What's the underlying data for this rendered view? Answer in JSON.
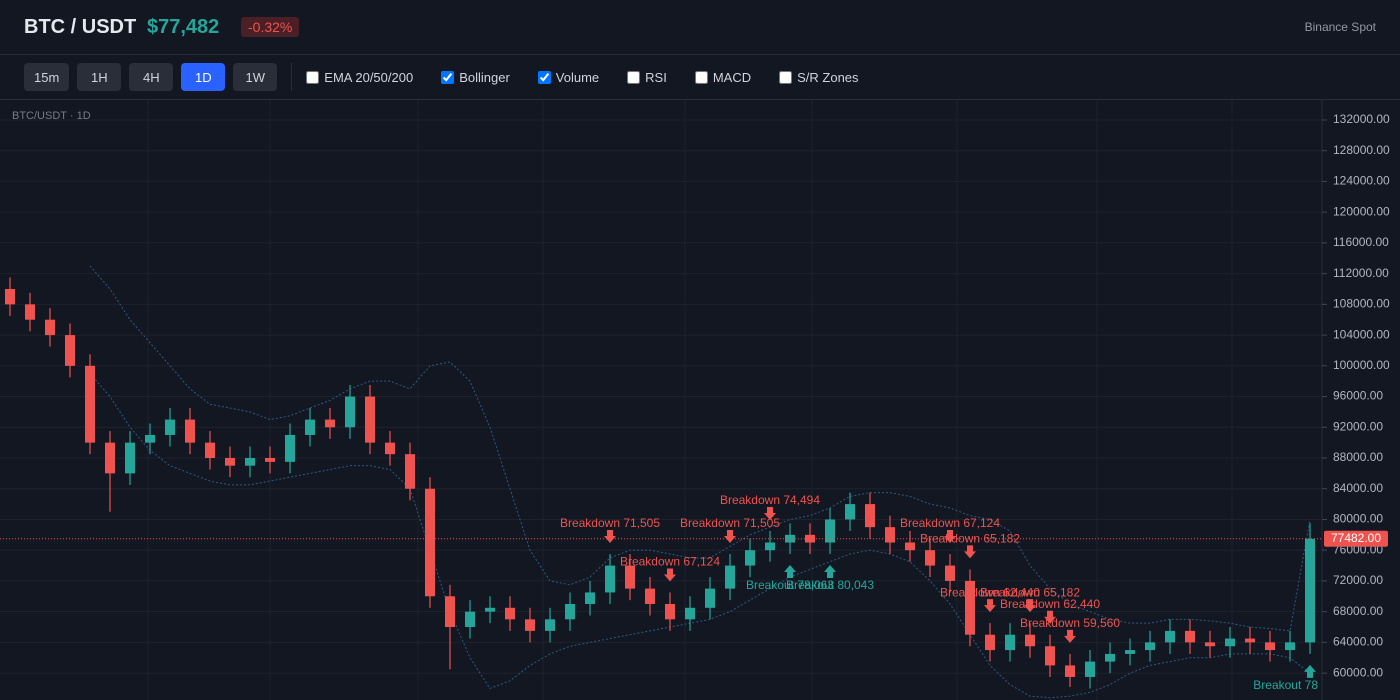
{
  "header": {
    "symbol": "BTC / USDT",
    "price": "$77,482",
    "change": "-0.32%",
    "exchange": "Binance Spot"
  },
  "toolbar": {
    "timeframes": [
      {
        "label": "15m",
        "active": false
      },
      {
        "label": "1H",
        "active": false
      },
      {
        "label": "4H",
        "active": false
      },
      {
        "label": "1D",
        "active": true
      },
      {
        "label": "1W",
        "active": false
      }
    ],
    "indicators": [
      {
        "label": "EMA 20/50/200",
        "checked": false
      },
      {
        "label": "Bollinger",
        "checked": true
      },
      {
        "label": "Volume",
        "checked": true
      },
      {
        "label": "RSI",
        "checked": false
      },
      {
        "label": "MACD",
        "checked": false
      },
      {
        "label": "S/R Zones",
        "checked": false
      }
    ]
  },
  "chart_data": {
    "type": "candlestick",
    "title": "BTC/USDT · 1D",
    "up_color": "#26a69a",
    "down_color": "#ef5350",
    "ylim": [
      56500,
      134600
    ],
    "yticks": [
      {
        "value": 60000,
        "label": "60000.00"
      },
      {
        "value": 64000,
        "label": "64000.00"
      },
      {
        "value": 68000,
        "label": "68000.00"
      },
      {
        "value": 72000,
        "label": "72000.00"
      },
      {
        "value": 76000,
        "label": "76000.00"
      },
      {
        "value": 80000,
        "label": "80000.00"
      },
      {
        "value": 84000,
        "label": "84000.00"
      },
      {
        "value": 88000,
        "label": "88000.00"
      },
      {
        "value": 92000,
        "label": "92000.00"
      },
      {
        "value": 96000,
        "label": "96000.00"
      },
      {
        "value": 100000,
        "label": "100000.00"
      },
      {
        "value": 104000,
        "label": "104000.00"
      },
      {
        "value": 108000,
        "label": "108000.00"
      },
      {
        "value": 112000,
        "label": "112000.00"
      },
      {
        "value": 116000,
        "label": "116000.00"
      },
      {
        "value": 120000,
        "label": "120000.00"
      },
      {
        "value": 124000,
        "label": "124000.00"
      },
      {
        "value": 128000,
        "label": "128000.00"
      },
      {
        "value": 132000,
        "label": "132000.00"
      }
    ],
    "last_price": {
      "value": 77482,
      "label": "77482.00"
    },
    "candles": {
      "open": [
        110000,
        108000,
        106000,
        104000,
        100000,
        90000,
        86000,
        90000,
        91000,
        93000,
        90000,
        88000,
        87000,
        88000,
        87500,
        91000,
        93000,
        92000,
        96000,
        90000,
        88500,
        84000,
        70000,
        66000,
        68000,
        68500,
        67000,
        65500,
        67000,
        69000,
        70500,
        74000,
        71000,
        69000,
        67000,
        68500,
        71000,
        74000,
        76000,
        77000,
        78000,
        77000,
        80000,
        82000,
        79000,
        77000,
        76000,
        74000,
        72000,
        65000,
        63000,
        65000,
        63500,
        61000,
        59500,
        61500,
        62500,
        63000,
        64000,
        65500,
        64000,
        63500,
        64500,
        64000,
        63000,
        64000
      ],
      "high": [
        111500,
        109500,
        107500,
        105500,
        101500,
        91500,
        91500,
        92500,
        94500,
        94500,
        91500,
        89500,
        89500,
        89500,
        92500,
        94500,
        94500,
        97500,
        97500,
        91500,
        90000,
        85500,
        71500,
        69500,
        70000,
        70000,
        68500,
        68500,
        70500,
        72000,
        75500,
        75500,
        72500,
        70500,
        70000,
        72500,
        75500,
        77500,
        78500,
        79500,
        79500,
        81500,
        83500,
        83500,
        80500,
        78500,
        77500,
        75500,
        73500,
        66500,
        66500,
        66500,
        65000,
        62500,
        63000,
        64000,
        64500,
        65500,
        67000,
        67000,
        65500,
        66000,
        66000,
        65500,
        65500,
        79500
      ],
      "low": [
        106500,
        104500,
        102500,
        98500,
        88500,
        81000,
        84500,
        88500,
        89500,
        88500,
        86500,
        85500,
        85500,
        86000,
        86000,
        89500,
        90500,
        90500,
        88500,
        87000,
        82500,
        68500,
        60500,
        64500,
        66500,
        65500,
        64000,
        64000,
        65500,
        67500,
        69000,
        69500,
        67500,
        65500,
        65500,
        67000,
        69500,
        72500,
        74500,
        75500,
        75500,
        75500,
        78500,
        77500,
        75500,
        74500,
        72500,
        70500,
        63500,
        61500,
        61500,
        62000,
        59500,
        58200,
        58000,
        60000,
        61000,
        61500,
        62500,
        62500,
        62000,
        62000,
        62500,
        61500,
        61500,
        62500
      ],
      "close": [
        108000,
        106000,
        104000,
        100000,
        90000,
        86000,
        90000,
        91000,
        93000,
        90000,
        88000,
        87000,
        88000,
        87500,
        91000,
        93000,
        92000,
        96000,
        90000,
        88500,
        84000,
        70000,
        66000,
        68000,
        68500,
        67000,
        65500,
        67000,
        69000,
        70500,
        74000,
        71000,
        69000,
        67000,
        68500,
        71000,
        74000,
        76000,
        77000,
        78000,
        77000,
        80000,
        82000,
        79000,
        77000,
        76000,
        74000,
        72000,
        65000,
        63000,
        65000,
        63500,
        61000,
        59500,
        61500,
        62500,
        63000,
        64000,
        65500,
        64000,
        63500,
        64500,
        64000,
        63000,
        64000,
        77482
      ]
    },
    "bollinger": {
      "color": "#2b5a86",
      "upper": [
        null,
        null,
        null,
        null,
        113000,
        110000,
        106000,
        103000,
        100000,
        97000,
        95000,
        94500,
        94000,
        93000,
        93500,
        94500,
        95500,
        97000,
        98000,
        98000,
        97000,
        100000,
        100500,
        98000,
        92000,
        84000,
        76000,
        72000,
        71500,
        72500,
        75000,
        76000,
        76000,
        75500,
        75000,
        75000,
        76500,
        78000,
        79000,
        80000,
        80500,
        81500,
        83000,
        83500,
        83500,
        83000,
        82000,
        81500,
        80500,
        80000,
        78500,
        74000,
        71000,
        69000,
        68000,
        67000,
        66500,
        66500,
        67000,
        67000,
        66800,
        66500,
        66000,
        65800,
        65500,
        80000
      ],
      "lower": [
        null,
        null,
        null,
        null,
        99000,
        96000,
        92000,
        89000,
        87000,
        86000,
        85000,
        84500,
        84500,
        85000,
        85500,
        86000,
        86500,
        87000,
        87000,
        86500,
        84000,
        76000,
        68000,
        62000,
        58000,
        59000,
        61000,
        62500,
        63500,
        64000,
        64500,
        65000,
        65500,
        66000,
        66500,
        67000,
        68000,
        69500,
        71000,
        72500,
        73500,
        74500,
        75500,
        76000,
        75500,
        74500,
        72000,
        69000,
        65000,
        61000,
        58500,
        57000,
        56800,
        57000,
        57500,
        58500,
        60000,
        61000,
        61500,
        62000,
        62000,
        62500,
        62500,
        62500,
        62000,
        60000
      ]
    },
    "signals": [
      {
        "label": "Breakdown 71,505",
        "index": 30,
        "color": "#ef5350"
      },
      {
        "label": "Breakdown 67,124",
        "index": 33,
        "color": "#ef5350"
      },
      {
        "label": "Breakdown 71,505",
        "index": 36,
        "color": "#ef5350"
      },
      {
        "label": "Breakdown 74,494",
        "index": 38,
        "color": "#ef5350"
      },
      {
        "label": "Breakout 78,063",
        "index": 39,
        "color": "#26a69a"
      },
      {
        "label": "Breakout 80,043",
        "index": 41,
        "color": "#26a69a"
      },
      {
        "label": "Breakdown 67,124",
        "index": 47,
        "color": "#ef5350"
      },
      {
        "label": "Breakdown 65,182",
        "index": 48,
        "color": "#ef5350"
      },
      {
        "label": "Breakdown 62,440",
        "index": 49,
        "color": "#ef5350"
      },
      {
        "label": "Breakdown 65,182",
        "index": 51,
        "color": "#ef5350"
      },
      {
        "label": "Breakdown 62,440",
        "index": 52,
        "color": "#ef5350"
      },
      {
        "label": "Breakdown 59,560",
        "index": 53,
        "color": "#ef5350"
      },
      {
        "label": "Breakout 78",
        "index": 65,
        "color": "#26a69a"
      }
    ]
  }
}
